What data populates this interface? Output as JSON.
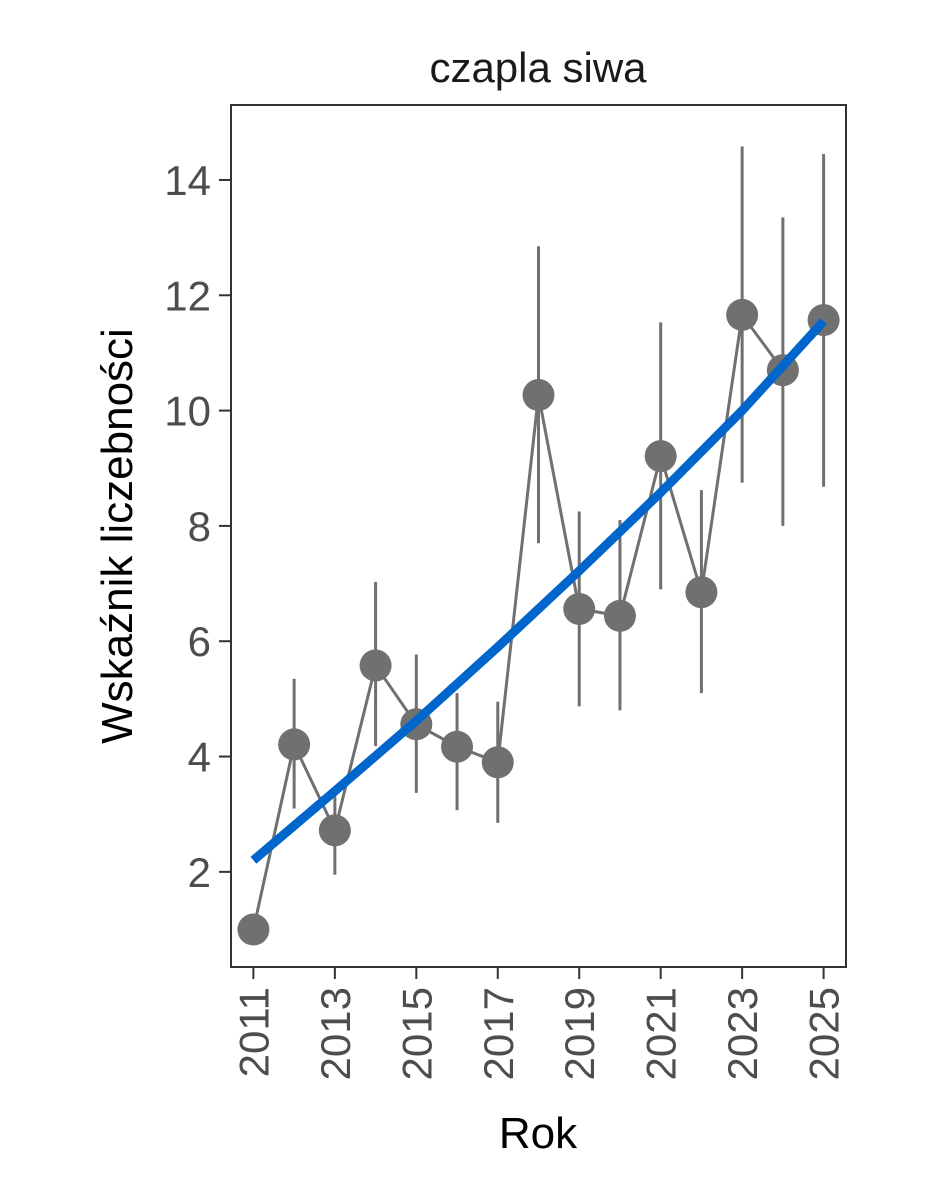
{
  "chart_data": {
    "type": "line",
    "title": "czapla siwa",
    "xlabel": "Rok",
    "ylabel": "Wskaźnik liczebności",
    "xlim": [
      2010.45,
      2025.55
    ],
    "ylim": [
      0.35,
      15.3
    ],
    "x_ticks": [
      2011,
      2013,
      2015,
      2017,
      2019,
      2021,
      2023,
      2025
    ],
    "x_tick_labels": [
      "2011",
      "2013",
      "2015",
      "2017",
      "2019",
      "2021",
      "2023",
      "2025"
    ],
    "y_ticks": [
      2,
      4,
      6,
      8,
      10,
      12,
      14
    ],
    "y_tick_labels": [
      "2",
      "4",
      "6",
      "8",
      "10",
      "12",
      "14"
    ],
    "grid": false,
    "series": [
      {
        "type": "points-with-errorbars",
        "color": "#707070",
        "x": [
          2011,
          2012,
          2013,
          2014,
          2015,
          2016,
          2017,
          2018,
          2019,
          2020,
          2021,
          2022,
          2023,
          2024,
          2025
        ],
        "y": [
          1.0,
          4.21,
          2.72,
          5.58,
          4.56,
          4.17,
          3.9,
          10.27,
          6.56,
          6.44,
          9.21,
          6.85,
          11.66,
          10.7,
          11.57
        ],
        "lower": [
          1.0,
          3.1,
          1.95,
          4.18,
          3.37,
          3.07,
          2.85,
          7.7,
          4.87,
          4.8,
          6.9,
          5.1,
          8.75,
          8.0,
          8.68
        ],
        "upper": [
          1.0,
          5.35,
          3.4,
          7.03,
          5.77,
          5.1,
          4.95,
          12.85,
          8.25,
          8.1,
          11.53,
          8.62,
          14.58,
          13.35,
          14.45
        ]
      },
      {
        "type": "trend",
        "color": "#0066cc",
        "x": [
          2011,
          2013,
          2015,
          2017,
          2019,
          2021,
          2023,
          2025
        ],
        "y": [
          2.2,
          3.4,
          4.62,
          5.9,
          7.22,
          8.58,
          10.0,
          11.55
        ]
      }
    ]
  }
}
